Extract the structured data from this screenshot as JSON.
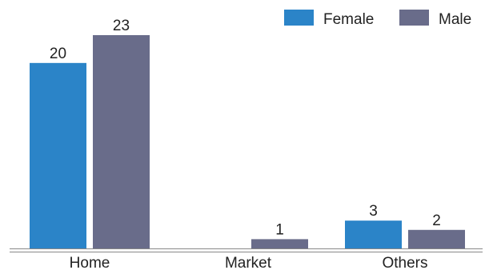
{
  "chart_data": {
    "type": "bar",
    "categories": [
      "Home",
      "Market",
      "Others"
    ],
    "series": [
      {
        "name": "Female",
        "values": [
          20,
          0,
          3
        ],
        "color": "#2B84C8",
        "labels": [
          "20",
          "",
          "3"
        ]
      },
      {
        "name": "Male",
        "values": [
          23,
          1,
          2
        ],
        "color": "#696C8A",
        "labels": [
          "23",
          "1",
          "2"
        ]
      }
    ],
    "ylim": [
      0,
      23
    ],
    "grid": false,
    "legend_position": "top-right",
    "axis_color": "#888888"
  }
}
